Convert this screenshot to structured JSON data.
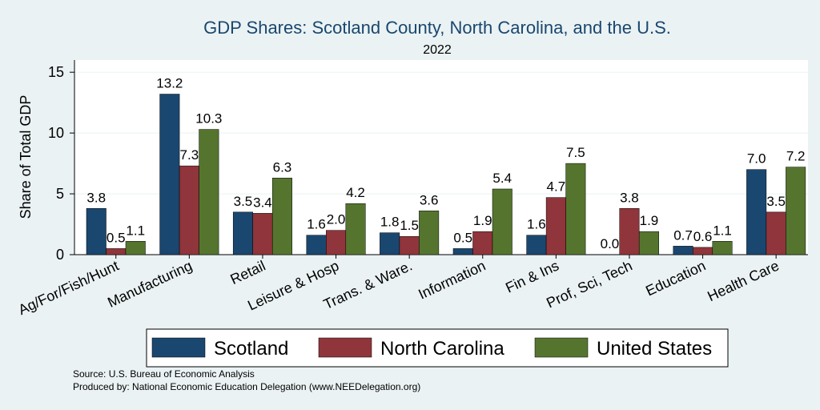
{
  "chart_data": {
    "type": "bar",
    "title": "GDP Shares: Scotland County, North Carolina, and the U.S.",
    "subtitle": "2022",
    "xlabel": "",
    "ylabel": "Share of Total GDP",
    "ylim": [
      0,
      16
    ],
    "yticks": [
      0,
      5,
      10,
      15
    ],
    "grid": true,
    "categories": [
      "Ag/For/Fish/Hunt",
      "Manufacturing",
      "Retail",
      "Leisure & Hosp",
      "Trans. & Ware.",
      "Information",
      "Fin & Ins",
      "Prof, Sci, Tech",
      "Education",
      "Health Care"
    ],
    "series": [
      {
        "name": "Scotland",
        "color": "#1a476f",
        "values": [
          3.8,
          13.2,
          3.5,
          1.6,
          1.8,
          0.5,
          1.6,
          0.0,
          0.7,
          7.0
        ],
        "labels": [
          "3.8",
          "13.2",
          "3.5",
          "1.6",
          "1.8",
          "0.5",
          "1.6",
          "0.0",
          "0.7",
          "7.0"
        ]
      },
      {
        "name": "North Carolina",
        "color": "#90353b",
        "values": [
          0.5,
          7.3,
          3.4,
          2.0,
          1.5,
          1.9,
          4.7,
          3.8,
          0.6,
          3.5
        ],
        "labels": [
          "0.5",
          "7.3",
          "3.4",
          "2.0",
          "1.5",
          "1.9",
          "4.7",
          "3.8",
          "0.6",
          "3.5"
        ]
      },
      {
        "name": "United States",
        "color": "#55752f",
        "values": [
          1.1,
          10.3,
          6.3,
          4.2,
          3.6,
          5.4,
          7.5,
          1.9,
          1.1,
          7.2
        ],
        "labels": [
          "1.1",
          "10.3",
          "6.3",
          "4.2",
          "3.6",
          "5.4",
          "7.5",
          "1.9",
          "1.1",
          "7.2"
        ]
      }
    ],
    "legend_position": "bottom"
  },
  "footer": {
    "source": "Source: U.S. Bureau of Economic Analysis",
    "produced_by": "Produced by: National Economic Education Delegation (www.NEEDelegation.org)"
  }
}
